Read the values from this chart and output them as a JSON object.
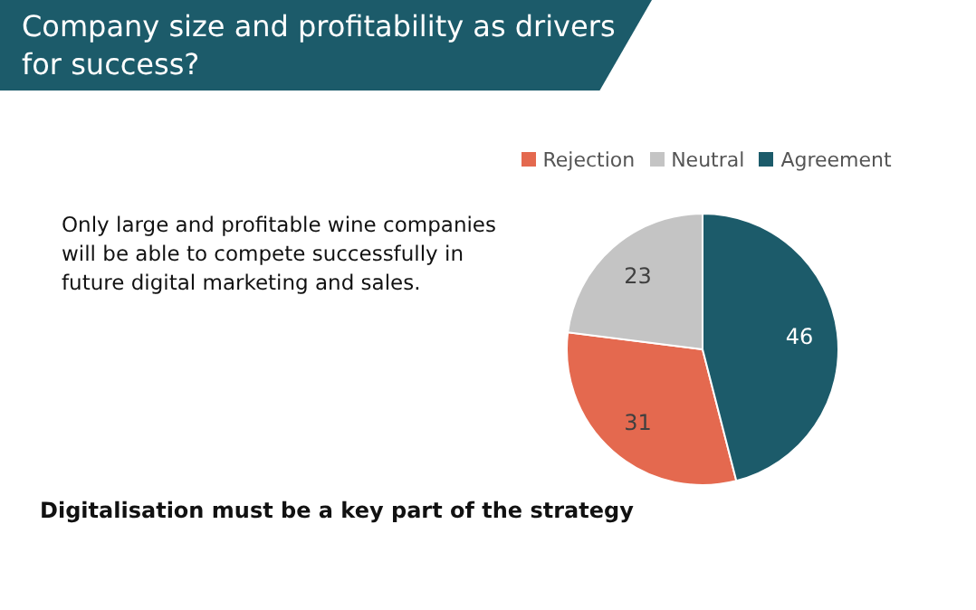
{
  "chart_data": {
    "type": "pie",
    "title": "Company size and profitability as drivers for success?",
    "categories": [
      "Rejection",
      "Neutral",
      "Agreement"
    ],
    "values": [
      31,
      23,
      46
    ],
    "colors": [
      "#e4694f",
      "#c4c4c4",
      "#1c5b6a"
    ],
    "data_labels": true,
    "legend": "top",
    "annotations": [
      "Only large and profitable wine companies will be able to compete successfully in future digital marketing and sales.",
      "Digitalisation must be a key part of the strategy"
    ]
  }
}
